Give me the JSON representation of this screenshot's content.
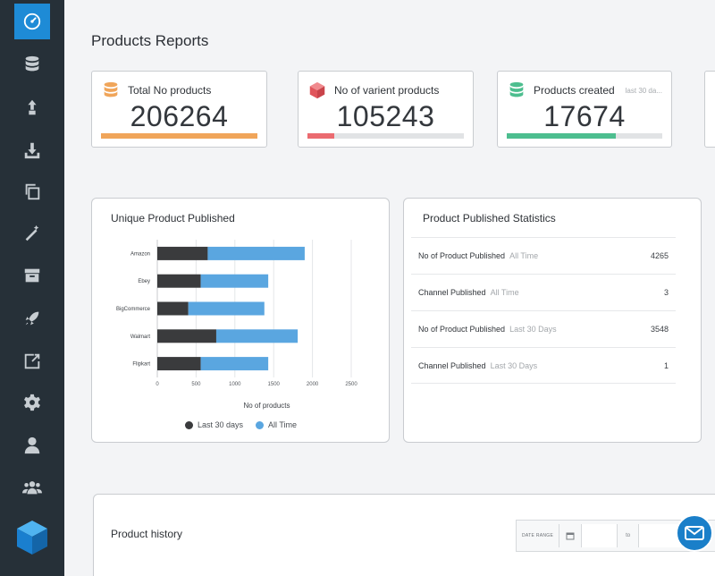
{
  "page": {
    "title": "Products Reports"
  },
  "sidebar": {
    "items": [
      {
        "icon": "dashboard-icon",
        "active": true
      },
      {
        "icon": "database-icon"
      },
      {
        "icon": "upload-icon"
      },
      {
        "icon": "download-icon"
      },
      {
        "icon": "copy-icon"
      },
      {
        "icon": "magic-wand-icon"
      },
      {
        "icon": "archive-icon"
      },
      {
        "icon": "rocket-icon"
      },
      {
        "icon": "export-icon"
      },
      {
        "icon": "gear-icon"
      },
      {
        "icon": "user-icon"
      },
      {
        "icon": "users-icon"
      }
    ],
    "logo": "cube-logo"
  },
  "cards": [
    {
      "label": "Total No products",
      "value": "206264",
      "sub": "",
      "color": "#f0a55a",
      "icon": "database-icon",
      "fill": 1.0
    },
    {
      "label": "No of varient products",
      "value": "105243",
      "sub": "",
      "color": "#eb6b70",
      "icon": "cube-icon",
      "fill": 0.17
    },
    {
      "label": "Products created",
      "value": "17674",
      "sub": "last 30 da...",
      "color": "#4dbe8f",
      "icon": "database-icon",
      "fill": 0.7
    }
  ],
  "chart_panel": {
    "title": "Unique Product Published"
  },
  "chart_data": {
    "type": "bar",
    "orientation": "horizontal",
    "stacked": true,
    "categories": [
      "Amazon",
      "Ebey",
      "BigCommerce",
      "Walmart",
      "Flipkart"
    ],
    "series": [
      {
        "name": "Last 30 days",
        "color": "#3a3b3d",
        "values": [
          650,
          560,
          400,
          760,
          560
        ]
      },
      {
        "name": "All Time",
        "color": "#5aa6e0",
        "values": [
          1250,
          870,
          980,
          1050,
          870
        ]
      }
    ],
    "xticks": [
      "0",
      "500",
      "1000",
      "1500",
      "2000",
      "2500"
    ],
    "xlim": [
      0,
      2500
    ],
    "xlabel": "No of products",
    "grid": true,
    "legend": "bottom"
  },
  "stats_panel": {
    "title": "Product Published Statistics",
    "rows": [
      {
        "label": "No of Product Published",
        "period": "All Time",
        "value": "4265"
      },
      {
        "label": "Channel Published",
        "period": "All Time",
        "value": "3"
      },
      {
        "label": "No of Product Published",
        "period": "Last 30 Days",
        "value": "3548"
      },
      {
        "label": "Channel Published",
        "period": "Last 30 Days",
        "value": "1"
      }
    ]
  },
  "history": {
    "title": "Product history",
    "date_range_label": "DATE RANGE",
    "to_label": "to"
  },
  "fab": {
    "icon": "mail-icon"
  }
}
